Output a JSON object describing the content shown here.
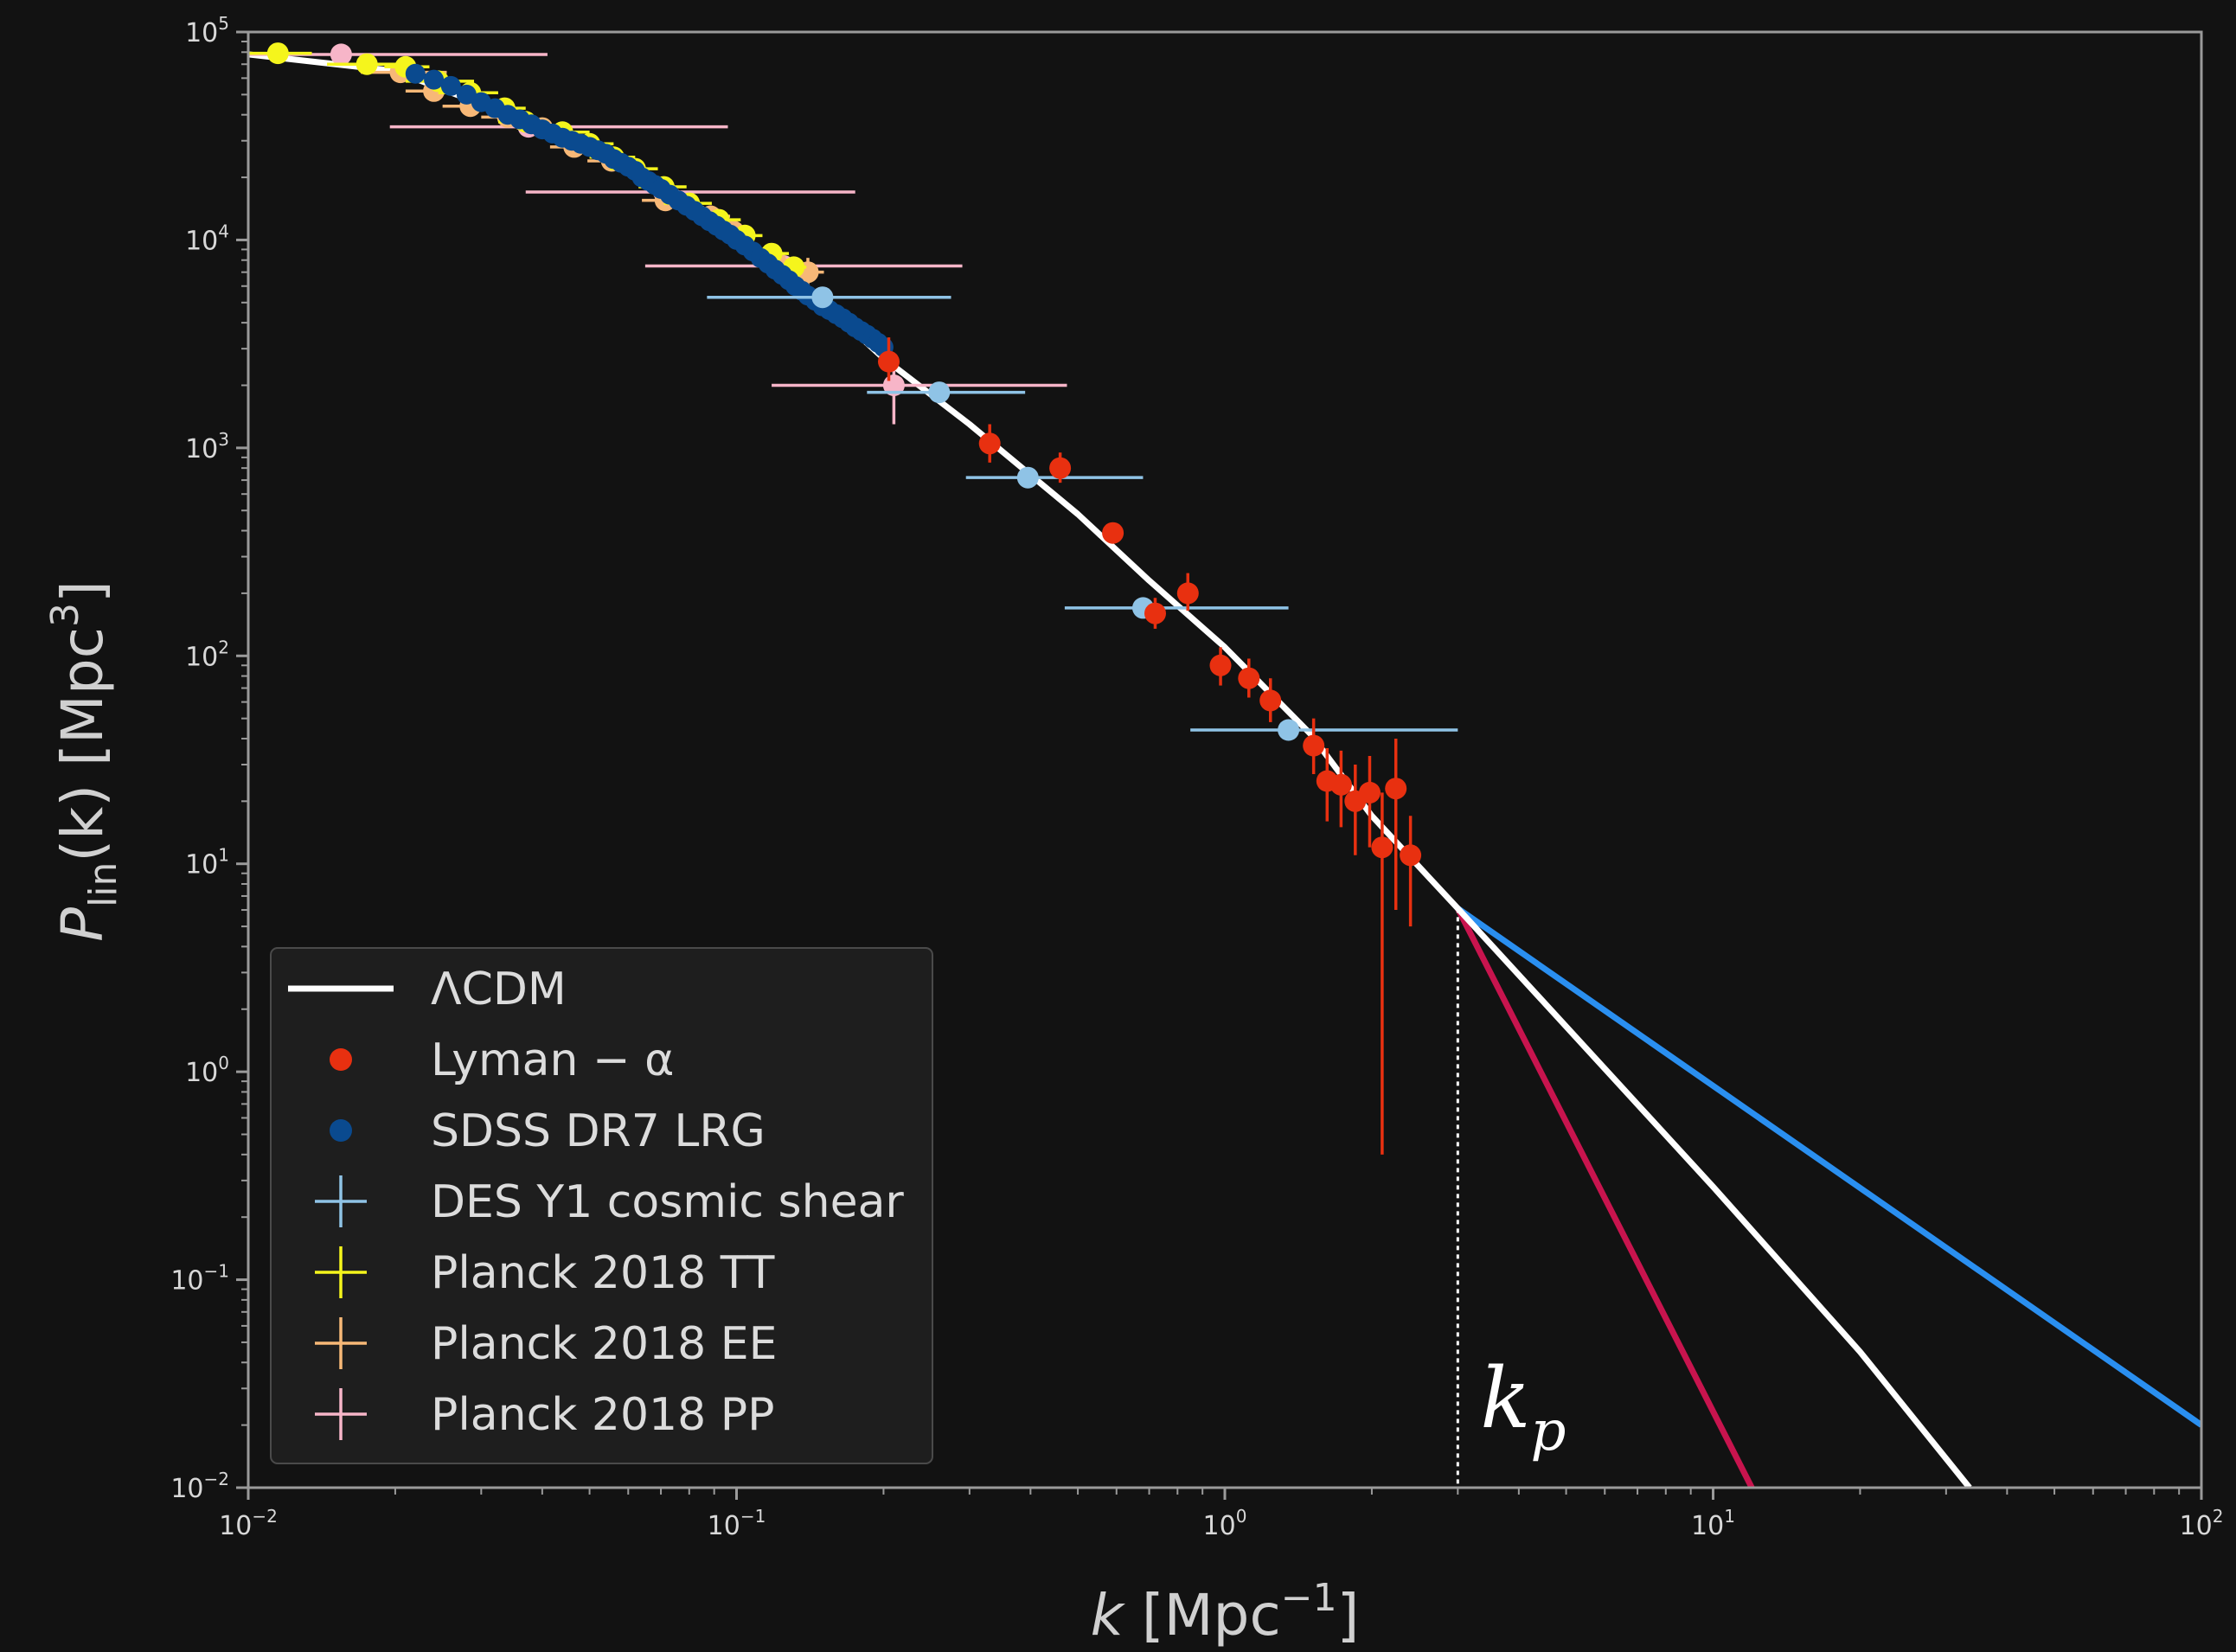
{
  "colors": {
    "background": "#121212",
    "axes_frame": "#9a9a9a",
    "lcdm": "#ffffff",
    "lyman": "#e83010",
    "sdss": "#0a4a8f",
    "des": "#8fc3e6",
    "planck_tt": "#f5f51c",
    "planck_ee": "#f7b877",
    "planck_pp": "#f7b5c8",
    "blue_line": "#2a8ff0",
    "crimson_line": "#c8144e",
    "kp_line": "#ffffff",
    "legend_bg": "#1e1e1e",
    "legend_border": "#4a4a4a"
  },
  "chart_data": {
    "type": "scatter",
    "x_scale": "log",
    "y_scale": "log",
    "xlim": [
      0.01,
      100
    ],
    "ylim": [
      0.01,
      100000
    ],
    "grid": false,
    "legend_position": "lower-left",
    "xlabel": {
      "main": "k",
      "unit_open": "[Mpc",
      "sup": "−1",
      "unit_close": "]"
    },
    "ylabel": {
      "main": "P",
      "sub": "lin",
      "arg": "(k)",
      "unit_open": "[Mpc",
      "sup": "3",
      "unit_close": "]"
    },
    "x_ticks": [
      {
        "value": 0.01,
        "base": "10",
        "exp": "−2"
      },
      {
        "value": 0.1,
        "base": "10",
        "exp": "−1"
      },
      {
        "value": 1,
        "base": "10",
        "exp": "0"
      },
      {
        "value": 10,
        "base": "10",
        "exp": "1"
      },
      {
        "value": 100,
        "base": "10",
        "exp": "2"
      }
    ],
    "y_ticks": [
      {
        "value": 0.01,
        "base": "10",
        "exp": "−2"
      },
      {
        "value": 0.1,
        "base": "10",
        "exp": "−1"
      },
      {
        "value": 1,
        "base": "10",
        "exp": "0"
      },
      {
        "value": 10,
        "base": "10",
        "exp": "1"
      },
      {
        "value": 100,
        "base": "10",
        "exp": "2"
      },
      {
        "value": 1000,
        "base": "10",
        "exp": "3"
      },
      {
        "value": 10000,
        "base": "10",
        "exp": "4"
      },
      {
        "value": 100000,
        "base": "10",
        "exp": "5"
      }
    ],
    "annotation": {
      "text": "k",
      "sub": "p",
      "k_p": 3.0
    },
    "lines": [
      {
        "id": "lcdm",
        "name": "ΛCDM",
        "points": [
          [
            0.01,
            78000
          ],
          [
            0.02,
            65000
          ],
          [
            0.03,
            45000
          ],
          [
            0.05,
            30000
          ],
          [
            0.07,
            19000
          ],
          [
            0.1,
            11000
          ],
          [
            0.15,
            5000
          ],
          [
            0.2,
            2700
          ],
          [
            0.3,
            1300
          ],
          [
            0.5,
            480
          ],
          [
            0.7,
            230
          ],
          [
            1.0,
            110
          ],
          [
            1.5,
            42
          ],
          [
            2.0,
            17
          ],
          [
            3.0,
            6.1
          ],
          [
            10,
            0.28
          ],
          [
            20,
            0.045
          ],
          [
            33.5,
            0.01
          ]
        ]
      },
      {
        "id": "blue",
        "name": "",
        "points": [
          [
            3.0,
            6.1
          ],
          [
            100,
            0.02
          ]
        ]
      },
      {
        "id": "crimson",
        "name": "",
        "points": [
          [
            3.0,
            6.1
          ],
          [
            12.0,
            0.01
          ]
        ]
      }
    ],
    "series": [
      {
        "id": "lyman",
        "name": "Lyman − α",
        "marker": "dot",
        "points": [
          {
            "x": 0.205,
            "y": 2600,
            "ylo": 2100,
            "yhi": 3400
          },
          {
            "x": 0.33,
            "y": 1050,
            "ylo": 850,
            "yhi": 1300
          },
          {
            "x": 0.46,
            "y": 800,
            "ylo": 680,
            "yhi": 950
          },
          {
            "x": 0.59,
            "y": 390,
            "ylo": 360,
            "yhi": 430
          },
          {
            "x": 0.72,
            "y": 160,
            "ylo": 135,
            "yhi": 190
          },
          {
            "x": 0.84,
            "y": 200,
            "ylo": 165,
            "yhi": 250
          },
          {
            "x": 0.98,
            "y": 90,
            "ylo": 72,
            "yhi": 110
          },
          {
            "x": 1.12,
            "y": 78,
            "ylo": 63,
            "yhi": 97
          },
          {
            "x": 1.24,
            "y": 61,
            "ylo": 48,
            "yhi": 78
          },
          {
            "x": 1.52,
            "y": 37,
            "ylo": 27,
            "yhi": 50
          },
          {
            "x": 1.62,
            "y": 25,
            "ylo": 16,
            "yhi": 36
          },
          {
            "x": 1.73,
            "y": 24,
            "ylo": 15,
            "yhi": 35
          },
          {
            "x": 1.85,
            "y": 20,
            "ylo": 11,
            "yhi": 30
          },
          {
            "x": 1.98,
            "y": 22,
            "ylo": 12,
            "yhi": 33
          },
          {
            "x": 2.1,
            "y": 12,
            "ylo": 0.4,
            "yhi": 22
          },
          {
            "x": 2.24,
            "y": 23,
            "ylo": 6,
            "yhi": 40
          },
          {
            "x": 2.4,
            "y": 11,
            "ylo": 5,
            "yhi": 17
          }
        ]
      },
      {
        "id": "sdss",
        "name": "SDSS DR7 LRG",
        "marker": "dot",
        "points": [
          {
            "x": 0.022,
            "y": 63000
          },
          {
            "x": 0.024,
            "y": 59000
          },
          {
            "x": 0.026,
            "y": 55000
          },
          {
            "x": 0.028,
            "y": 50000
          },
          {
            "x": 0.03,
            "y": 46000
          },
          {
            "x": 0.032,
            "y": 43000
          },
          {
            "x": 0.034,
            "y": 40000
          },
          {
            "x": 0.036,
            "y": 38000
          },
          {
            "x": 0.038,
            "y": 36000
          },
          {
            "x": 0.04,
            "y": 34000
          },
          {
            "x": 0.042,
            "y": 32500
          },
          {
            "x": 0.044,
            "y": 31000
          },
          {
            "x": 0.046,
            "y": 30000
          },
          {
            "x": 0.048,
            "y": 29000
          },
          {
            "x": 0.05,
            "y": 28000
          },
          {
            "x": 0.052,
            "y": 27000
          },
          {
            "x": 0.054,
            "y": 26000
          },
          {
            "x": 0.056,
            "y": 24500
          },
          {
            "x": 0.058,
            "y": 23500
          },
          {
            "x": 0.06,
            "y": 22500
          },
          {
            "x": 0.062,
            "y": 21500
          },
          {
            "x": 0.064,
            "y": 20000
          },
          {
            "x": 0.066,
            "y": 19200
          },
          {
            "x": 0.068,
            "y": 18400
          },
          {
            "x": 0.07,
            "y": 17600
          },
          {
            "x": 0.073,
            "y": 16500
          },
          {
            "x": 0.076,
            "y": 15500
          },
          {
            "x": 0.079,
            "y": 14600
          },
          {
            "x": 0.082,
            "y": 13800
          },
          {
            "x": 0.085,
            "y": 13000
          },
          {
            "x": 0.088,
            "y": 12300
          },
          {
            "x": 0.091,
            "y": 11700
          },
          {
            "x": 0.094,
            "y": 11100
          },
          {
            "x": 0.097,
            "y": 10600
          },
          {
            "x": 0.1,
            "y": 10000
          },
          {
            "x": 0.104,
            "y": 9400
          },
          {
            "x": 0.108,
            "y": 8800
          },
          {
            "x": 0.112,
            "y": 8200
          },
          {
            "x": 0.116,
            "y": 7700
          },
          {
            "x": 0.12,
            "y": 7200
          },
          {
            "x": 0.124,
            "y": 6800
          },
          {
            "x": 0.128,
            "y": 6400
          },
          {
            "x": 0.132,
            "y": 6000
          },
          {
            "x": 0.136,
            "y": 5700
          },
          {
            "x": 0.14,
            "y": 5400
          },
          {
            "x": 0.145,
            "y": 5100
          },
          {
            "x": 0.15,
            "y": 4800
          },
          {
            "x": 0.155,
            "y": 4600
          },
          {
            "x": 0.16,
            "y": 4400
          },
          {
            "x": 0.165,
            "y": 4200
          },
          {
            "x": 0.17,
            "y": 4000
          },
          {
            "x": 0.175,
            "y": 3800
          },
          {
            "x": 0.18,
            "y": 3650
          },
          {
            "x": 0.185,
            "y": 3500
          },
          {
            "x": 0.19,
            "y": 3350
          },
          {
            "x": 0.195,
            "y": 3200
          },
          {
            "x": 0.2,
            "y": 3050
          }
        ]
      },
      {
        "id": "des",
        "name": "DES Y1 cosmic shear",
        "marker": "dot",
        "points": [
          {
            "x": 0.15,
            "y": 5300,
            "xlo": 0.087,
            "xhi": 0.275
          },
          {
            "x": 0.26,
            "y": 1850,
            "xlo": 0.185,
            "xhi": 0.39
          },
          {
            "x": 0.395,
            "y": 720,
            "xlo": 0.295,
            "xhi": 0.68
          },
          {
            "x": 0.68,
            "y": 170,
            "xlo": 0.47,
            "xhi": 1.35
          },
          {
            "x": 1.35,
            "y": 44,
            "xlo": 0.85,
            "xhi": 3.0
          }
        ]
      },
      {
        "id": "planck_tt",
        "name": "Planck 2018 TT",
        "marker": "dot",
        "points": [
          {
            "x": 0.0115,
            "y": 79000,
            "xlo": 0.01,
            "xhi": 0.0135
          },
          {
            "x": 0.0175,
            "y": 70000,
            "xlo": 0.0145,
            "xhi": 0.021
          },
          {
            "x": 0.021,
            "y": 68000,
            "xlo": 0.019,
            "xhi": 0.0235
          },
          {
            "x": 0.0245,
            "y": 58000,
            "xlo": 0.021,
            "xhi": 0.029
          },
          {
            "x": 0.0285,
            "y": 51000,
            "xlo": 0.0245,
            "xhi": 0.0325
          },
          {
            "x": 0.0335,
            "y": 43000,
            "xlo": 0.029,
            "xhi": 0.037
          },
          {
            "x": 0.037,
            "y": 37000,
            "xlo": 0.0325,
            "xhi": 0.041
          },
          {
            "x": 0.044,
            "y": 33000,
            "xlo": 0.038,
            "xhi": 0.05
          },
          {
            "x": 0.05,
            "y": 29000,
            "xlo": 0.044,
            "xhi": 0.056
          },
          {
            "x": 0.056,
            "y": 25000,
            "xlo": 0.05,
            "xhi": 0.062
          },
          {
            "x": 0.062,
            "y": 22000,
            "xlo": 0.055,
            "xhi": 0.069
          },
          {
            "x": 0.071,
            "y": 18000,
            "xlo": 0.063,
            "xhi": 0.079
          },
          {
            "x": 0.08,
            "y": 15000,
            "xlo": 0.071,
            "xhi": 0.089
          },
          {
            "x": 0.092,
            "y": 12500,
            "xlo": 0.082,
            "xhi": 0.102
          },
          {
            "x": 0.104,
            "y": 10500,
            "xlo": 0.094,
            "xhi": 0.113
          },
          {
            "x": 0.118,
            "y": 8600,
            "xlo": 0.108,
            "xhi": 0.128
          },
          {
            "x": 0.131,
            "y": 7400,
            "xlo": 0.122,
            "xhi": 0.139
          }
        ]
      },
      {
        "id": "planck_ee",
        "name": "Planck 2018 EE",
        "marker": "dot",
        "points": [
          {
            "x": 0.0205,
            "y": 64000,
            "xlo": 0.017,
            "xhi": 0.0255,
            "ylo": 60000,
            "yhi": 68000
          },
          {
            "x": 0.024,
            "y": 52000,
            "xlo": 0.021,
            "xhi": 0.0275,
            "ylo": 49000,
            "yhi": 55000
          },
          {
            "x": 0.0285,
            "y": 44000,
            "xlo": 0.025,
            "xhi": 0.032,
            "ylo": 41000,
            "yhi": 47000
          },
          {
            "x": 0.034,
            "y": 39000,
            "xlo": 0.03,
            "xhi": 0.038,
            "ylo": 36000,
            "yhi": 42000
          },
          {
            "x": 0.04,
            "y": 34500,
            "xlo": 0.0355,
            "xhi": 0.0445,
            "ylo": 32000,
            "yhi": 37000
          },
          {
            "x": 0.0465,
            "y": 28000,
            "xlo": 0.0415,
            "xhi": 0.052,
            "ylo": 26000,
            "yhi": 30500
          },
          {
            "x": 0.0555,
            "y": 24000,
            "xlo": 0.0495,
            "xhi": 0.062,
            "ylo": 22000,
            "yhi": 26000
          },
          {
            "x": 0.0715,
            "y": 15500,
            "xlo": 0.064,
            "xhi": 0.079,
            "ylo": 14000,
            "yhi": 17000
          },
          {
            "x": 0.0885,
            "y": 13000,
            "xlo": 0.08,
            "xhi": 0.097,
            "ylo": 11800,
            "yhi": 14200
          },
          {
            "x": 0.0985,
            "y": 11000,
            "xlo": 0.09,
            "xhi": 0.107,
            "ylo": 10000,
            "yhi": 12000
          },
          {
            "x": 0.12,
            "y": 8000,
            "xlo": 0.11,
            "xhi": 0.13,
            "ylo": 7200,
            "yhi": 8900
          },
          {
            "x": 0.14,
            "y": 7000,
            "xlo": 0.129,
            "xhi": 0.151,
            "ylo": 6100,
            "yhi": 8200
          }
        ]
      },
      {
        "id": "planck_pp",
        "name": "Planck 2018 PP",
        "marker": "dot",
        "points": [
          {
            "x": 0.0155,
            "y": 78000,
            "xlo": 0.01,
            "xhi": 0.041
          },
          {
            "x": 0.0375,
            "y": 35000,
            "xlo": 0.0195,
            "xhi": 0.096
          },
          {
            "x": 0.071,
            "y": 17000,
            "xlo": 0.037,
            "xhi": 0.175
          },
          {
            "x": 0.125,
            "y": 7500,
            "xlo": 0.065,
            "xhi": 0.29
          },
          {
            "x": 0.21,
            "y": 2000,
            "xlo": 0.118,
            "xhi": 0.475,
            "ylo": 1300,
            "yhi": 2600
          }
        ]
      }
    ],
    "legend": [
      {
        "id": "lcdm",
        "label": "ΛCDM",
        "symbol": "line",
        "color_key": "lcdm"
      },
      {
        "id": "lyman",
        "label": "Lyman − α",
        "symbol": "dot",
        "color_key": "lyman"
      },
      {
        "id": "sdss",
        "label": "SDSS DR7 LRG",
        "symbol": "dot",
        "color_key": "sdss"
      },
      {
        "id": "des",
        "label": "DES Y1 cosmic shear",
        "symbol": "cross",
        "color_key": "des"
      },
      {
        "id": "planck_tt",
        "label": "Planck 2018 TT",
        "symbol": "cross",
        "color_key": "planck_tt"
      },
      {
        "id": "planck_ee",
        "label": "Planck 2018 EE",
        "symbol": "cross",
        "color_key": "planck_ee"
      },
      {
        "id": "planck_pp",
        "label": "Planck 2018 PP",
        "symbol": "cross",
        "color_key": "planck_pp"
      }
    ]
  }
}
